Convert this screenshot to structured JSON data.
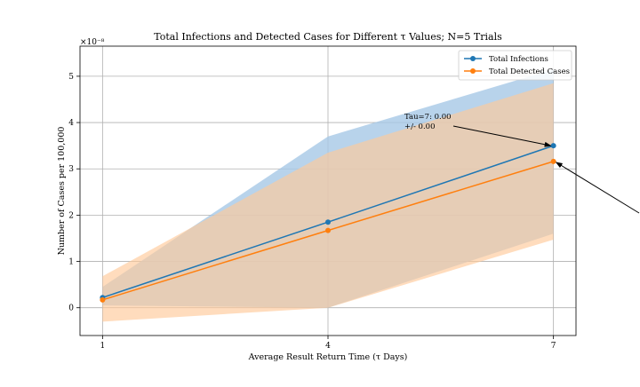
{
  "chart_data": {
    "type": "line",
    "title": "Total Infections and Detected Cases for Different τ Values; N=5 Trials",
    "xlabel": "Average Result Return Time (τ Days)",
    "ylabel": "Number of Cases per 100,000",
    "y_offset_label": "×10⁻⁸",
    "x": [
      1,
      4,
      7
    ],
    "x_ticks": [
      "1",
      "4",
      "7"
    ],
    "y_ticks": [
      "0",
      "1",
      "2",
      "3",
      "4",
      "5"
    ],
    "xlim": [
      0.7,
      7.3
    ],
    "ylim": [
      -0.6,
      5.65
    ],
    "grid": true,
    "legend_position": "top-right",
    "series": [
      {
        "name": "Total Infections",
        "color": "#1f77b4",
        "band_color": "#a6c8e6",
        "values": [
          0.22,
          1.85,
          3.5
        ],
        "band_upper": [
          0.45,
          3.7,
          5.15
        ],
        "band_lower": [
          0.05,
          0.0,
          1.6
        ]
      },
      {
        "name": "Total Detected Cases",
        "color": "#ff7f0e",
        "band_color": "#ffc999",
        "values": [
          0.17,
          1.67,
          3.16
        ],
        "band_upper": [
          0.68,
          3.35,
          4.85
        ],
        "band_lower": [
          -0.3,
          0.0,
          1.47
        ]
      }
    ],
    "annotations": [
      {
        "lines": [
          "Tau=7: 0.00",
          "+/- 0.00"
        ],
        "x": 7,
        "y": 3.5
      }
    ]
  }
}
